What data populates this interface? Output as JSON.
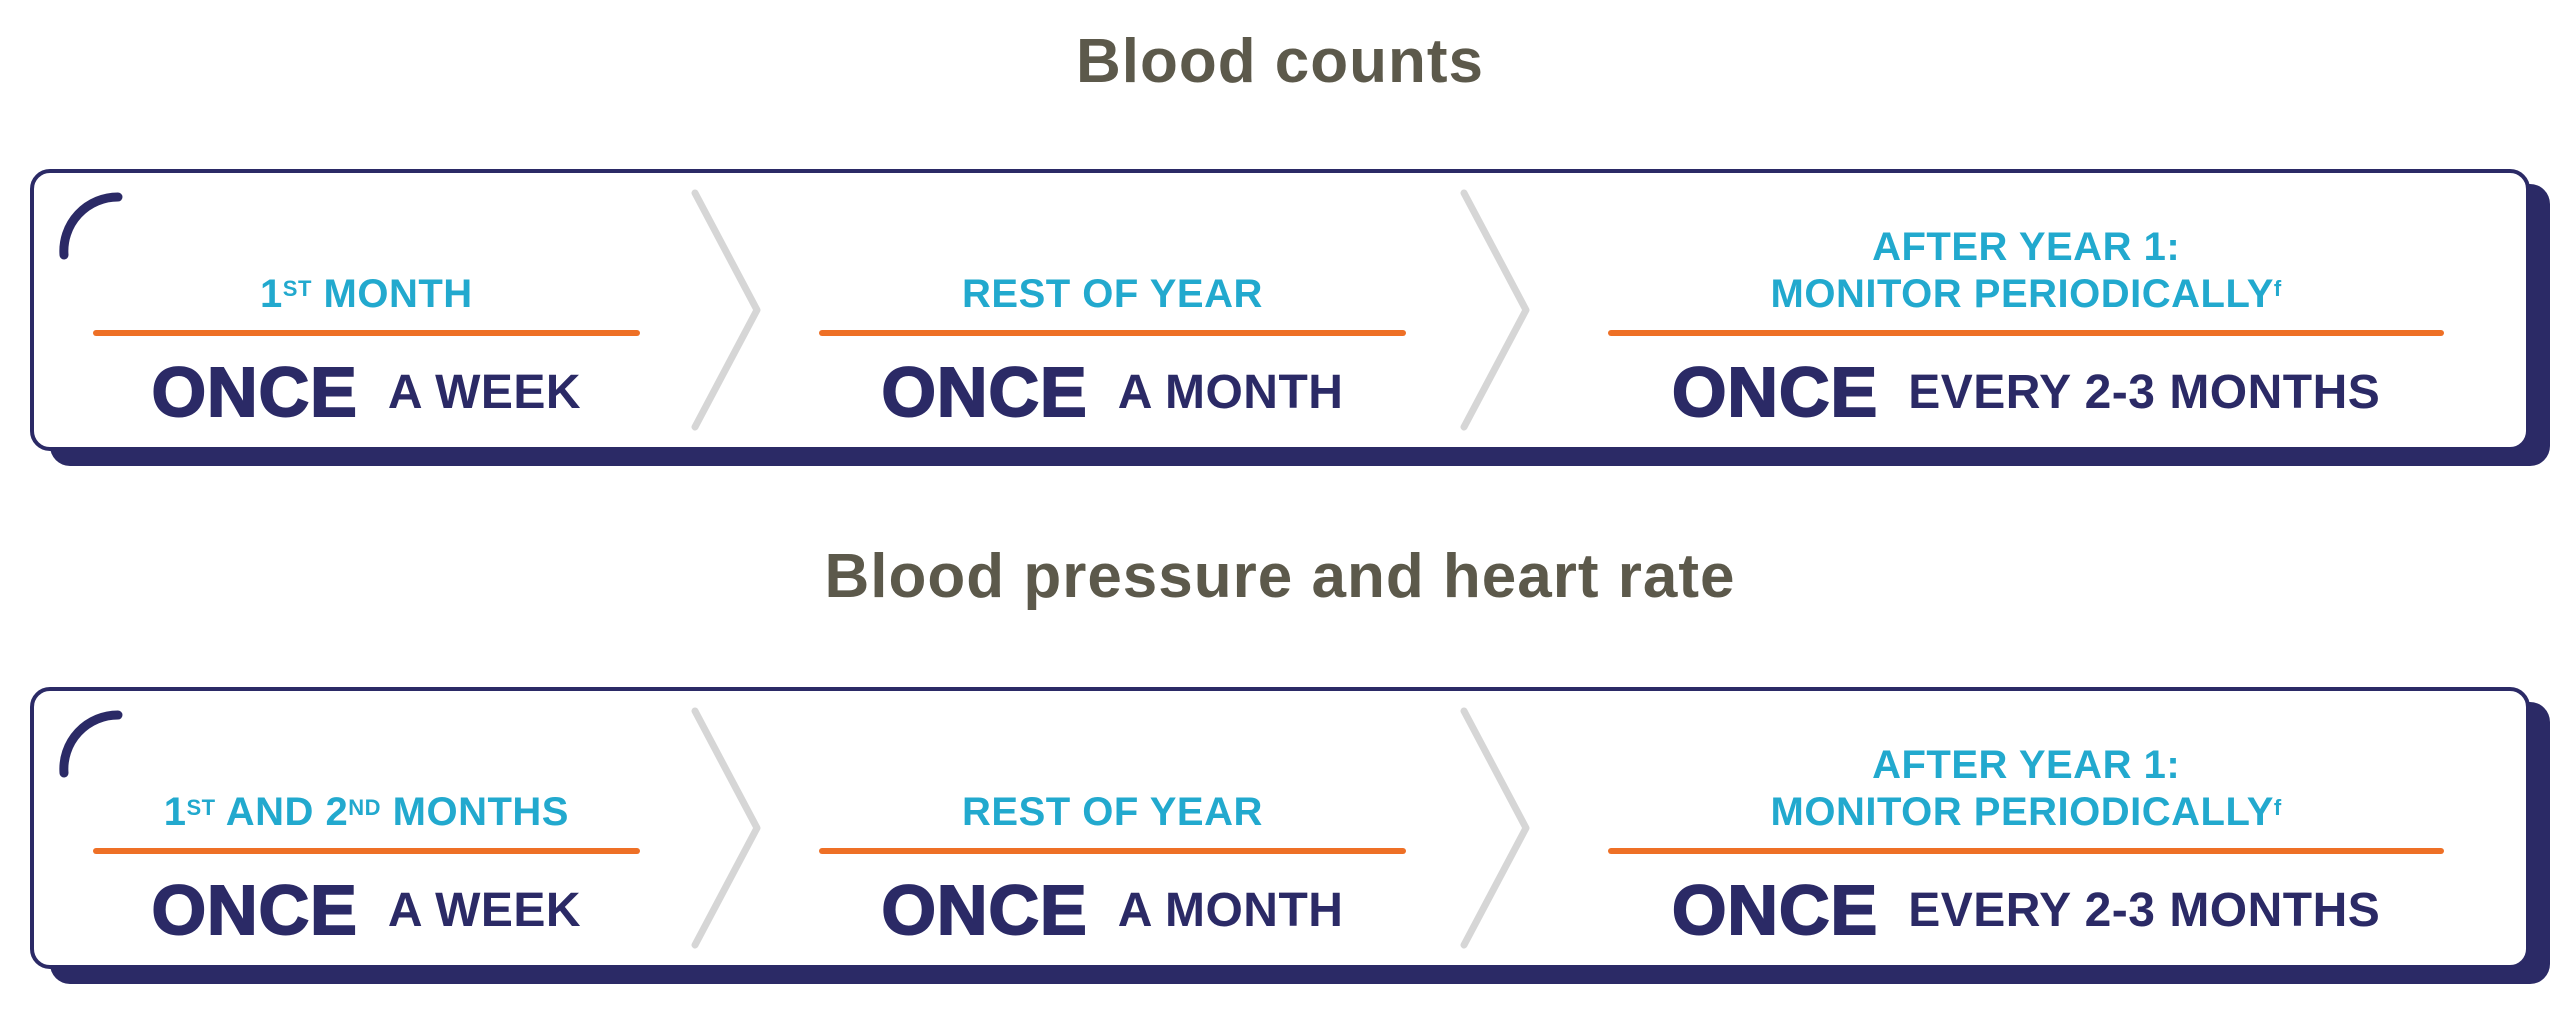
{
  "colors": {
    "navy": "#2B2A66",
    "cyan": "#22A9CE",
    "orange": "#EE7026",
    "title_olive": "#5C594B",
    "chevron_gray": "#D6D6D6",
    "page_bg": "#FFFFFF"
  },
  "sections": [
    {
      "title": "Blood counts",
      "cells": [
        {
          "header_lines": [
            [
              {
                "t": "1"
              },
              {
                "t": "ST",
                "sup": true
              },
              {
                "t": " MONTH"
              }
            ]
          ],
          "freq_big": "ONCE",
          "freq_rest": "A WEEK"
        },
        {
          "header_lines": [
            [
              {
                "t": "REST OF YEAR"
              }
            ]
          ],
          "freq_big": "ONCE",
          "freq_rest": "A MONTH"
        },
        {
          "header_lines": [
            [
              {
                "t": "AFTER YEAR 1:"
              }
            ],
            [
              {
                "t": "MONITOR PERIODICALLY"
              },
              {
                "t": "f",
                "sup": true
              }
            ]
          ],
          "freq_big": "ONCE",
          "freq_rest": "EVERY 2-3 MONTHS"
        }
      ]
    },
    {
      "title": "Blood pressure and heart rate",
      "cells": [
        {
          "header_lines": [
            [
              {
                "t": "1"
              },
              {
                "t": "ST",
                "sup": true
              },
              {
                "t": " AND 2"
              },
              {
                "t": "ND",
                "sup": true
              },
              {
                "t": " MONTHS"
              }
            ]
          ],
          "freq_big": "ONCE",
          "freq_rest": "A WEEK"
        },
        {
          "header_lines": [
            [
              {
                "t": "REST OF YEAR"
              }
            ]
          ],
          "freq_big": "ONCE",
          "freq_rest": "A MONTH"
        },
        {
          "header_lines": [
            [
              {
                "t": "AFTER YEAR 1:"
              }
            ],
            [
              {
                "t": "MONITOR PERIODICALLY"
              },
              {
                "t": "f",
                "sup": true
              }
            ]
          ],
          "freq_big": "ONCE",
          "freq_rest": "EVERY 2-3 MONTHS"
        }
      ]
    }
  ]
}
